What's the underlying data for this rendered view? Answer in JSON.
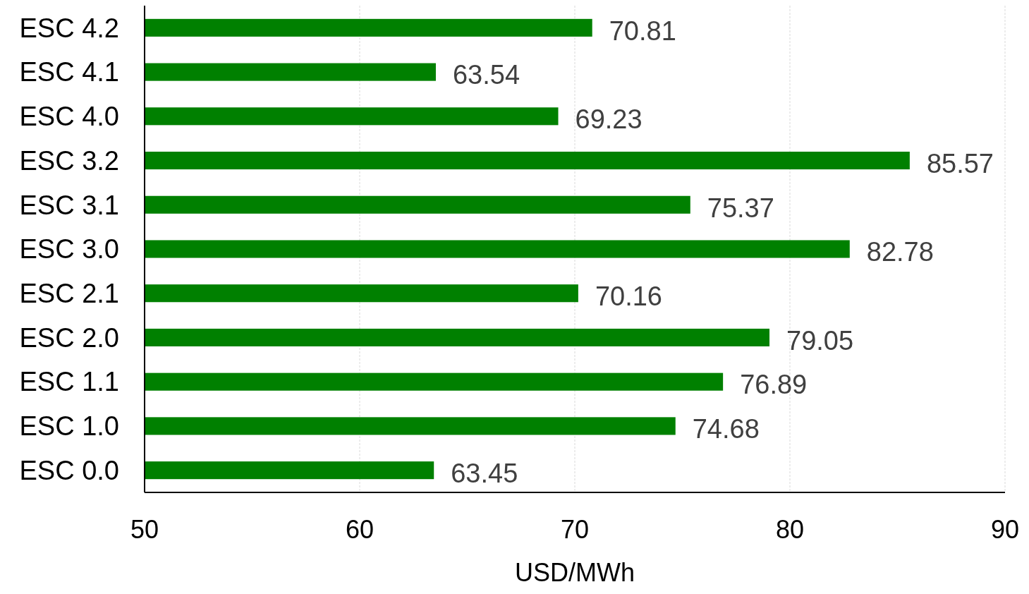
{
  "chart_data": {
    "type": "bar",
    "orientation": "horizontal",
    "xlabel": "USD/MWh",
    "categories": [
      "ESC 4.2",
      "ESC 4.1",
      "ESC 4.0",
      "ESC 3.2",
      "ESC 3.1",
      "ESC 3.0",
      "ESC 2.1",
      "ESC 2.0",
      "ESC 1.1",
      "ESC 1.0",
      "ESC 0.0"
    ],
    "values": [
      70.81,
      63.54,
      69.23,
      85.57,
      75.37,
      82.78,
      70.16,
      79.05,
      76.89,
      74.68,
      63.45
    ],
    "color": "#008000",
    "xlim": [
      50,
      90
    ],
    "xticks": [
      50,
      60,
      70,
      80,
      90
    ],
    "grid": "x",
    "data_labels": true
  }
}
